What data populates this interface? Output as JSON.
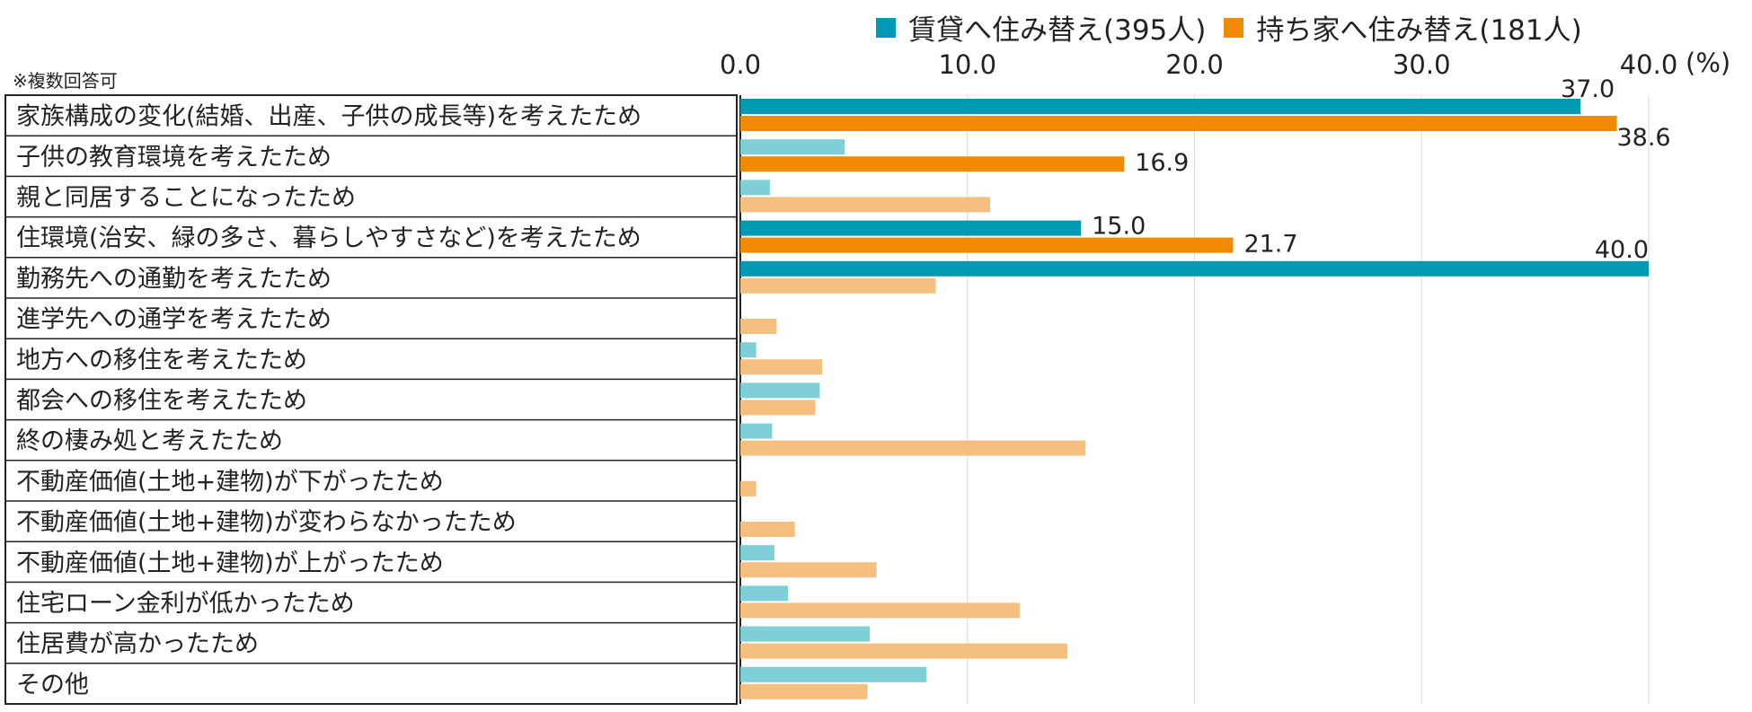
{
  "chart_data": {
    "type": "bar",
    "orientation": "horizontal",
    "note": "※複数回答可",
    "unit": "(%)",
    "xlim": [
      0,
      40
    ],
    "ticks": [
      "0.0",
      "10.0",
      "20.0",
      "30.0",
      "40.0"
    ],
    "tick_values": [
      0,
      10,
      20,
      30,
      40
    ],
    "grid": true,
    "legend_position": "top-right",
    "categories": [
      "家族構成の変化(結婚、出産、子供の成長等)を考えたため",
      "子供の教育環境を考えたため",
      "親と同居することになったため",
      "住環境(治安、緑の多さ、暮らしやすさなど)を考えたため",
      "勤務先への通勤を考えたため",
      "進学先への通学を考えたため",
      "地方への移住を考えたため",
      "都会への移住を考えたため",
      "終の棲み処と考えたため",
      "不動産価値(土地+建物)が下がったため",
      "不動産価値(土地+建物)が変わらなかったため",
      "不動産価値(土地+建物)が上がったため",
      "住宅ローン金利が低かったため",
      "住居費が高かったため",
      "その他"
    ],
    "series": [
      {
        "name": "賃貸へ住み替え(395人)",
        "color": "#0099b3",
        "light_color": "#7fcfd9",
        "values": [
          37.0,
          4.6,
          1.3,
          15.0,
          40.0,
          0.0,
          0.7,
          3.5,
          1.4,
          0.0,
          0.0,
          1.5,
          2.1,
          5.7,
          8.2
        ],
        "labels": [
          "37.0",
          "",
          "",
          "15.0",
          "40.0",
          "",
          "",
          "",
          "",
          "",
          "",
          "",
          "",
          "",
          ""
        ]
      },
      {
        "name": "持ち家へ住み替え(181人)",
        "color": "#f08a00",
        "light_color": "#f5c07f",
        "values": [
          38.6,
          16.9,
          11.0,
          21.7,
          8.6,
          1.6,
          3.6,
          3.3,
          15.2,
          0.7,
          2.4,
          6.0,
          12.3,
          14.4,
          5.6
        ],
        "labels": [
          "38.6",
          "16.9",
          "",
          "21.7",
          "",
          "",
          "",
          "",
          "",
          "",
          "",
          "",
          "",
          "",
          ""
        ]
      }
    ]
  }
}
